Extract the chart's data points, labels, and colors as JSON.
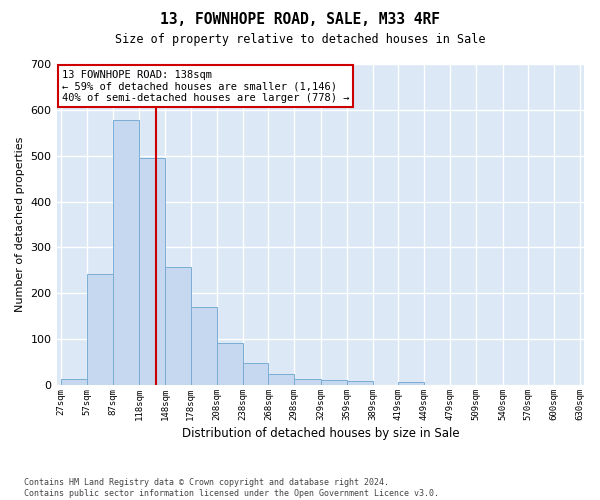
{
  "title": "13, FOWNHOPE ROAD, SALE, M33 4RF",
  "subtitle": "Size of property relative to detached houses in Sale",
  "xlabel": "Distribution of detached houses by size in Sale",
  "ylabel": "Number of detached properties",
  "footnote": "Contains HM Land Registry data © Crown copyright and database right 2024.\nContains public sector information licensed under the Open Government Licence v3.0.",
  "bin_edges": [
    27,
    57,
    87,
    118,
    148,
    178,
    208,
    238,
    268,
    298,
    329,
    359,
    389,
    419,
    449,
    479,
    509,
    540,
    570,
    600,
    630
  ],
  "bin_labels": [
    "27sqm",
    "57sqm",
    "87sqm",
    "118sqm",
    "148sqm",
    "178sqm",
    "208sqm",
    "238sqm",
    "268sqm",
    "298sqm",
    "329sqm",
    "359sqm",
    "389sqm",
    "419sqm",
    "449sqm",
    "479sqm",
    "509sqm",
    "540sqm",
    "570sqm",
    "600sqm",
    "630sqm"
  ],
  "bar_values": [
    13,
    243,
    578,
    494,
    257,
    170,
    92,
    48,
    24,
    13,
    12,
    9,
    0,
    7,
    0,
    0,
    0,
    0,
    0,
    0
  ],
  "bar_fill_color": "#c5d8ef",
  "bar_edge_color": "#7aadd4",
  "plot_bg_color": "#dce8f5",
  "grid_color": "#ffffff",
  "red_line_x": 138,
  "red_line_color": "#cc0000",
  "annotation_text": "13 FOWNHOPE ROAD: 138sqm\n← 59% of detached houses are smaller (1,146)\n40% of semi-detached houses are larger (778) →",
  "annotation_edge_color": "#cc0000",
  "ylim": [
    0,
    700
  ],
  "yticks": [
    0,
    100,
    200,
    300,
    400,
    500,
    600,
    700
  ]
}
